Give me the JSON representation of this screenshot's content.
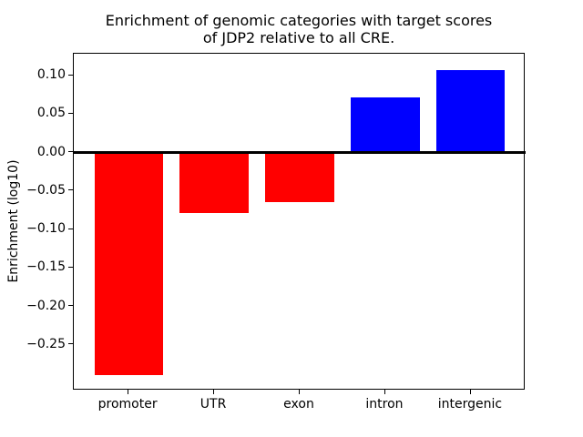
{
  "chart_data": {
    "type": "bar",
    "title": "Enrichment of genomic categories with target scores\nof JDP2 relative to all CRE.",
    "xlabel": "",
    "ylabel": "Enrichment (log10)",
    "categories": [
      "promoter",
      "UTR",
      "exon",
      "intron",
      "intergenic"
    ],
    "values": [
      -0.29,
      -0.079,
      -0.065,
      0.071,
      0.107
    ],
    "bar_colors": [
      "#ff0000",
      "#ff0000",
      "#ff0000",
      "#0000ff",
      "#0000ff"
    ],
    "negative_color": "#ff0000",
    "positive_color": "#0000ff",
    "bar_width": 0.8,
    "xlim": [
      -0.64,
      4.64
    ],
    "ylim": [
      -0.31,
      0.128
    ],
    "yticks": [
      {
        "v": 0.1,
        "label": "0.10"
      },
      {
        "v": 0.05,
        "label": "0.05"
      },
      {
        "v": 0.0,
        "label": "0.00"
      },
      {
        "v": -0.05,
        "label": "−0.05"
      },
      {
        "v": -0.1,
        "label": "−0.10"
      },
      {
        "v": -0.15,
        "label": "−0.15"
      },
      {
        "v": -0.2,
        "label": "−0.20"
      },
      {
        "v": -0.25,
        "label": "−0.25"
      },
      {
        "v": -0.0,
        "label": ""
      }
    ],
    "grid": false,
    "legend": null,
    "zero_line": true,
    "axis_color": "#000000"
  }
}
